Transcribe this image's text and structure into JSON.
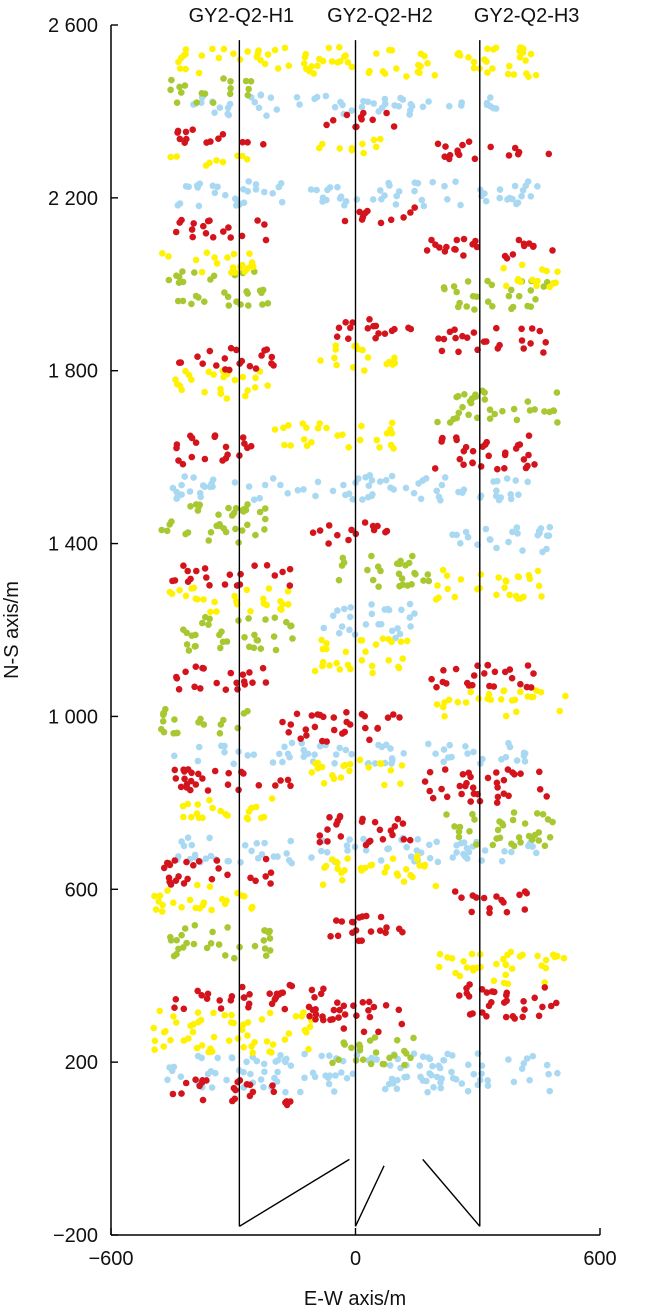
{
  "chart_data": {
    "type": "scatter",
    "xlabel": "E-W axis/m",
    "ylabel": "N-S axis/m",
    "xlim": [
      -600,
      600
    ],
    "ylim": [
      -200,
      2600
    ],
    "xticks": [
      -600,
      0,
      600
    ],
    "xtick_labels": [
      "−600",
      "0",
      "600"
    ],
    "yticks": [
      -200,
      200,
      600,
      1000,
      1400,
      1800,
      2200,
      2600
    ],
    "ytick_labels": [
      "−200",
      "200",
      "600",
      "1 000",
      "1 400",
      "1 800",
      "2 200",
      "2 600"
    ],
    "grid": false,
    "legend": "none",
    "colors": {
      "red": "#d4141c",
      "yellow": "#fff200",
      "green": "#a8c832",
      "blue": "#a9d8f2",
      "well": "#000000"
    },
    "wells": [
      {
        "label": "GY2-Q2-H1",
        "label_x": -280,
        "lateral": [
          [
            -285,
            -180
          ],
          [
            -285,
            2565
          ]
        ],
        "build_section": [
          [
            -285,
            -180
          ],
          [
            -15,
            -25
          ]
        ]
      },
      {
        "label": "GY2-Q2-H2",
        "label_x": 60,
        "lateral": [
          [
            0,
            -180
          ],
          [
            0,
            2565
          ]
        ],
        "build_section": [
          [
            0,
            -180
          ],
          [
            70,
            -40
          ]
        ]
      },
      {
        "label": "GY2-Q2-H3",
        "label_x": 420,
        "lateral": [
          [
            305,
            -180
          ],
          [
            305,
            2565
          ]
        ],
        "build_section": [
          [
            305,
            -180
          ],
          [
            165,
            -25
          ]
        ]
      }
    ],
    "event_bands": [
      {
        "color": "red",
        "x": [
          -450,
          -160
        ],
        "y": [
          100,
          160
        ]
      },
      {
        "color": "yellow",
        "x": [
          -500,
          -100
        ],
        "y": [
          220,
          320
        ]
      },
      {
        "color": "red",
        "x": [
          -450,
          -20
        ],
        "y": [
          320,
          380
        ]
      },
      {
        "color": "red",
        "x": [
          -120,
          120
        ],
        "y": [
          270,
          340
        ]
      },
      {
        "color": "red",
        "x": [
          230,
          500
        ],
        "y": [
          300,
          380
        ]
      },
      {
        "color": "green",
        "x": [
          -100,
          150
        ],
        "y": [
          190,
          260
        ]
      },
      {
        "color": "blue",
        "x": [
          -470,
          500
        ],
        "y": [
          130,
          220
        ]
      },
      {
        "color": "yellow",
        "x": [
          200,
          520
        ],
        "y": [
          380,
          460
        ]
      },
      {
        "color": "green",
        "x": [
          -460,
          -200
        ],
        "y": [
          440,
          520
        ]
      },
      {
        "color": "red",
        "x": [
          -110,
          120
        ],
        "y": [
          480,
          540
        ]
      },
      {
        "color": "red",
        "x": [
          240,
          430
        ],
        "y": [
          540,
          600
        ]
      },
      {
        "color": "yellow",
        "x": [
          -500,
          -250
        ],
        "y": [
          540,
          610
        ]
      },
      {
        "color": "red",
        "x": [
          -470,
          -180
        ],
        "y": [
          610,
          670
        ]
      },
      {
        "color": "yellow",
        "x": [
          -80,
          200
        ],
        "y": [
          600,
          680
        ]
      },
      {
        "color": "blue",
        "x": [
          -450,
          450
        ],
        "y": [
          660,
          720
        ]
      },
      {
        "color": "red",
        "x": [
          -110,
          140
        ],
        "y": [
          700,
          770
        ]
      },
      {
        "color": "green",
        "x": [
          200,
          500
        ],
        "y": [
          700,
          780
        ]
      },
      {
        "color": "yellow",
        "x": [
          -450,
          -200
        ],
        "y": [
          760,
          820
        ]
      },
      {
        "color": "red",
        "x": [
          -460,
          -150
        ],
        "y": [
          820,
          880
        ]
      },
      {
        "color": "red",
        "x": [
          160,
          470
        ],
        "y": [
          800,
          880
        ]
      },
      {
        "color": "yellow",
        "x": [
          -120,
          120
        ],
        "y": [
          840,
          900
        ]
      },
      {
        "color": "blue",
        "x": [
          -450,
          450
        ],
        "y": [
          890,
          940
        ]
      },
      {
        "color": "red",
        "x": [
          -180,
          120
        ],
        "y": [
          940,
          1010
        ]
      },
      {
        "color": "green",
        "x": [
          -480,
          -250
        ],
        "y": [
          960,
          1020
        ]
      },
      {
        "color": "yellow",
        "x": [
          200,
          520
        ],
        "y": [
          1000,
          1060
        ]
      },
      {
        "color": "red",
        "x": [
          -460,
          -210
        ],
        "y": [
          1060,
          1120
        ]
      },
      {
        "color": "red",
        "x": [
          160,
          450
        ],
        "y": [
          1060,
          1120
        ]
      },
      {
        "color": "yellow",
        "x": [
          -100,
          150
        ],
        "y": [
          1100,
          1180
        ]
      },
      {
        "color": "green",
        "x": [
          -450,
          -150
        ],
        "y": [
          1150,
          1230
        ]
      },
      {
        "color": "blue",
        "x": [
          -80,
          160
        ],
        "y": [
          1180,
          1260
        ]
      },
      {
        "color": "yellow",
        "x": [
          -460,
          -150
        ],
        "y": [
          1240,
          1300
        ]
      },
      {
        "color": "red",
        "x": [
          -450,
          -160
        ],
        "y": [
          1300,
          1350
        ]
      },
      {
        "color": "green",
        "x": [
          -60,
          180
        ],
        "y": [
          1300,
          1380
        ]
      },
      {
        "color": "yellow",
        "x": [
          180,
          460
        ],
        "y": [
          1270,
          1340
        ]
      },
      {
        "color": "red",
        "x": [
          -120,
          80
        ],
        "y": [
          1400,
          1450
        ]
      },
      {
        "color": "blue",
        "x": [
          200,
          480
        ],
        "y": [
          1380,
          1440
        ]
      },
      {
        "color": "green",
        "x": [
          -480,
          -220
        ],
        "y": [
          1400,
          1500
        ]
      },
      {
        "color": "red",
        "x": [
          -450,
          -250
        ],
        "y": [
          1580,
          1650
        ]
      },
      {
        "color": "yellow",
        "x": [
          -200,
          100
        ],
        "y": [
          1620,
          1680
        ]
      },
      {
        "color": "red",
        "x": [
          180,
          450
        ],
        "y": [
          1570,
          1650
        ]
      },
      {
        "color": "blue",
        "x": [
          -450,
          450
        ],
        "y": [
          1500,
          1560
        ]
      },
      {
        "color": "green",
        "x": [
          200,
          500
        ],
        "y": [
          1680,
          1760
        ]
      },
      {
        "color": "yellow",
        "x": [
          -460,
          -200
        ],
        "y": [
          1730,
          1800
        ]
      },
      {
        "color": "red",
        "x": [
          -450,
          -200
        ],
        "y": [
          1800,
          1860
        ]
      },
      {
        "color": "red",
        "x": [
          -50,
          150
        ],
        "y": [
          1860,
          1920
        ]
      },
      {
        "color": "red",
        "x": [
          200,
          480
        ],
        "y": [
          1840,
          1900
        ]
      },
      {
        "color": "yellow",
        "x": [
          -100,
          100
        ],
        "y": [
          1800,
          1860
        ]
      },
      {
        "color": "green",
        "x": [
          -470,
          -200
        ],
        "y": [
          1950,
          2030
        ]
      },
      {
        "color": "yellow",
        "x": [
          -480,
          -250
        ],
        "y": [
          2020,
          2080
        ]
      },
      {
        "color": "red",
        "x": [
          -450,
          -200
        ],
        "y": [
          2100,
          2150
        ]
      },
      {
        "color": "red",
        "x": [
          -50,
          150
        ],
        "y": [
          2140,
          2180
        ]
      },
      {
        "color": "red",
        "x": [
          170,
          500
        ],
        "y": [
          2060,
          2110
        ]
      },
      {
        "color": "yellow",
        "x": [
          350,
          500
        ],
        "y": [
          1990,
          2060
        ]
      },
      {
        "color": "green",
        "x": [
          200,
          480
        ],
        "y": [
          1940,
          2010
        ]
      },
      {
        "color": "blue",
        "x": [
          -450,
          450
        ],
        "y": [
          2180,
          2240
        ]
      },
      {
        "color": "yellow",
        "x": [
          -460,
          -250
        ],
        "y": [
          2270,
          2300
        ]
      },
      {
        "color": "red",
        "x": [
          -450,
          -200
        ],
        "y": [
          2320,
          2360
        ]
      },
      {
        "color": "red",
        "x": [
          -100,
          100
        ],
        "y": [
          2360,
          2400
        ]
      },
      {
        "color": "red",
        "x": [
          200,
          500
        ],
        "y": [
          2290,
          2330
        ]
      },
      {
        "color": "yellow",
        "x": [
          -100,
          80
        ],
        "y": [
          2300,
          2340
        ]
      },
      {
        "color": "green",
        "x": [
          -460,
          -250
        ],
        "y": [
          2420,
          2480
        ]
      },
      {
        "color": "yellow",
        "x": [
          -450,
          450
        ],
        "y": [
          2480,
          2550
        ]
      },
      {
        "color": "blue",
        "x": [
          -400,
          400
        ],
        "y": [
          2390,
          2440
        ]
      }
    ]
  }
}
